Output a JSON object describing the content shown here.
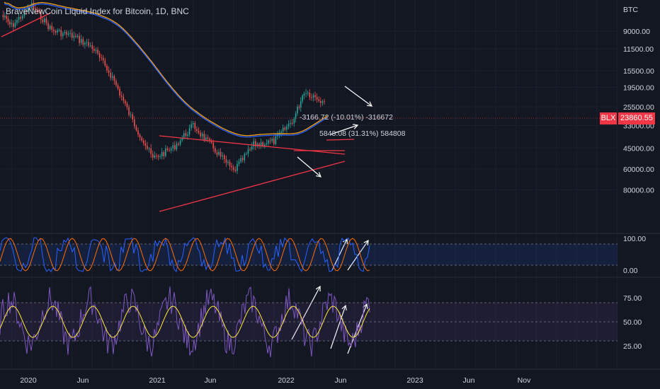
{
  "header": {
    "title": "BraveNewCoin Liquid Index for Bitcoin, 1D, BNC"
  },
  "price_axis": {
    "unit": "BTC",
    "ticks": [
      "9000.00",
      "11500.00",
      "15500.00",
      "19500.00",
      "25500.00",
      "33000.00",
      "45000.00",
      "60000.00",
      "80000.00"
    ]
  },
  "time_axis": {
    "labels": [
      "2020",
      "Jun",
      "2021",
      "Jun",
      "2022",
      "Jun",
      "2023",
      "Jun",
      "Nov"
    ]
  },
  "badge": {
    "label": "BLX",
    "value": "23860.55"
  },
  "measurements": {
    "top": "-3166.72 (-10.01%) -316672",
    "bottom": "5848.08 (31.31%) 584808"
  },
  "oscillator1": {
    "ticks": [
      "100.00",
      "0.00"
    ]
  },
  "oscillator2": {
    "ticks": [
      "75.00",
      "50.00",
      "25.00"
    ]
  },
  "colors": {
    "background": "#131722",
    "candle_up": "#26a69a",
    "candle_down": "#ef5350",
    "ma_orange": "#f7a21b",
    "ma_blue": "#2962ff",
    "trendline": "#f23645",
    "stoch_k": "#2962ff",
    "stoch_d": "#ff6d00",
    "rsi_line": "#7e57c2",
    "rsi_signal": "#ffeb3b",
    "annotation_arrow": "#ffffff"
  },
  "chart_data": {
    "type": "line",
    "title": "BraveNewCoin Liquid Index for Bitcoin, 1D, BNC",
    "y_scale": "log, inverted",
    "last_price": 23860.55,
    "series": [
      {
        "name": "BLX",
        "x": [
          "2019-12",
          "2020-01",
          "2020-03",
          "2020-05",
          "2020-07",
          "2020-09",
          "2020-11",
          "2021-01",
          "2021-03",
          "2021-05",
          "2021-07",
          "2021-09",
          "2021-11",
          "2022-01",
          "2022-03",
          "2022-05",
          "2022-06",
          "2022-08"
        ],
        "values": [
          7200,
          8400,
          6300,
          8900,
          9600,
          11200,
          17000,
          31000,
          52000,
          45000,
          33000,
          45000,
          62000,
          43000,
          41000,
          30000,
          20500,
          23860
        ]
      }
    ]
  }
}
